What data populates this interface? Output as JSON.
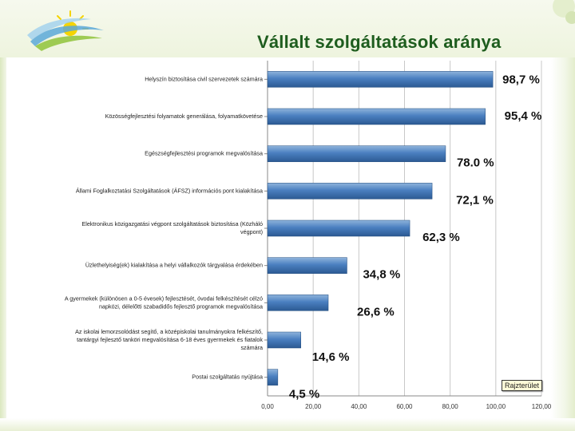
{
  "slide": {
    "title": "Vállalt szolgáltatások aránya",
    "drawing_area_tag": "Rajzterület"
  },
  "colors": {
    "title": "#1e5d1e",
    "bar_light": "#8fb4dc",
    "bar_mid": "#4a7fc0",
    "bar_dark": "#2c5a93",
    "grid": "#c8c8c8",
    "frame_green": "#dbe8bf"
  },
  "icons": [
    "sun-logo-icon",
    "corner-decoration"
  ],
  "chart_data": {
    "type": "bar",
    "orientation": "horizontal",
    "categories": [
      "Helyszín biztosítása civil szervezetek számára",
      "Közösségfejlesztési folyamatok generálása, folyamatkövetése",
      "Egészségfejlesztési programok megvalósítása",
      "Állami Foglalkoztatási Szolgáltatások (ÁFSZ) információs pont kialakítása",
      "Elektronikus közigazgatási végpont szolgáltatások biztosítása (Közháló végpont)",
      "Üzlethelyiség(ek) kialakítása a helyi vállalkozók tárgyalása érdekében",
      "A gyermekek (különösen a 0-5 évesek) fejlesztését, óvodai felkészítését célzó napközi, délelőtti szabadidős fejlesztő programok megvalósítása",
      "Az iskolai lemorzsolódást segítő, a középiskolai tanulmányokra felkészítő, tantárgyi fejlesztő tanköri megvalósítása 6-18 éves gyermekek és fiatalok számára",
      "Postai szolgáltatás nyújtása"
    ],
    "values": [
      98.7,
      95.4,
      78.0,
      72.1,
      62.3,
      34.8,
      26.6,
      14.6,
      4.5
    ],
    "data_labels": [
      "98,7 %",
      "95,4 %",
      "78.0 %",
      "72,1 %",
      "62,3 %",
      "34,8 %",
      "26,6 %",
      "14,6 %",
      "4,5 %"
    ],
    "x_ticks": [
      "0,00",
      "20,00",
      "40,00",
      "60,00",
      "80,00",
      "100,00",
      "120,00"
    ],
    "xlim": [
      0,
      120
    ],
    "grid": true,
    "legend": "none"
  }
}
